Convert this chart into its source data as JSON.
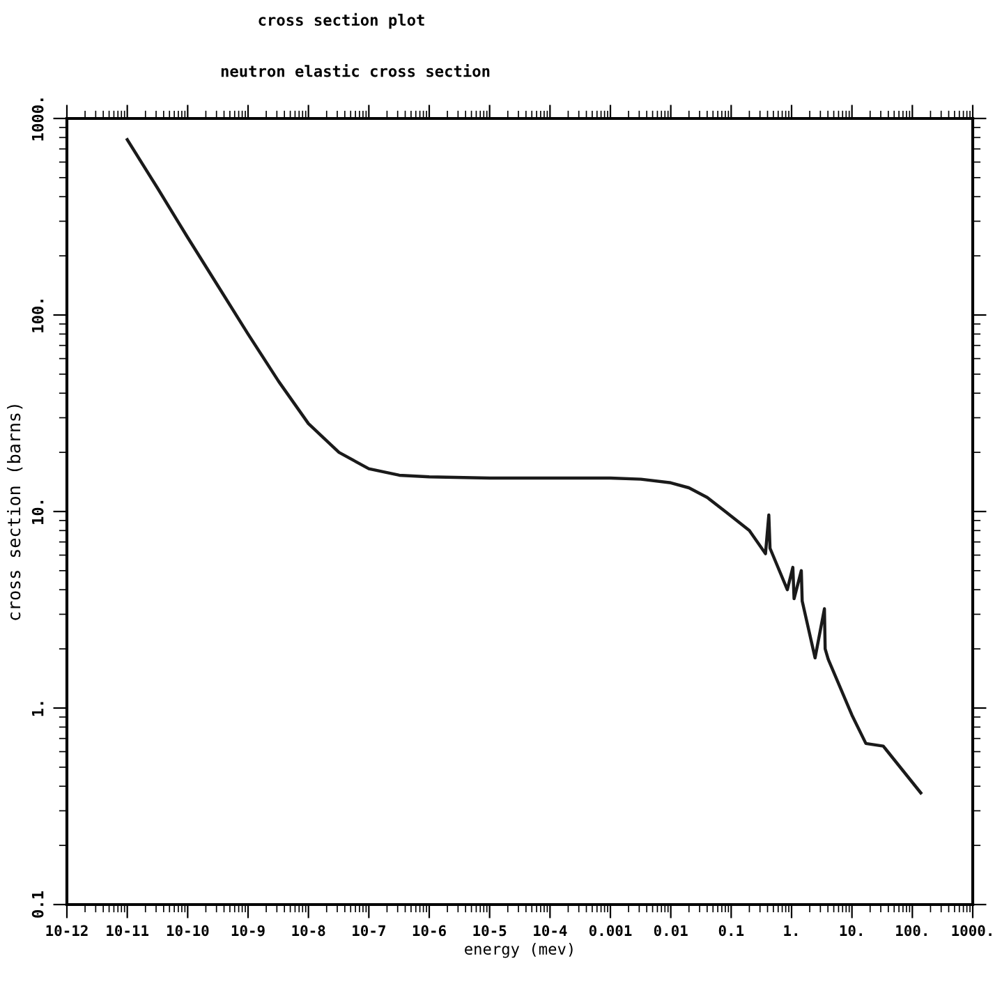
{
  "chart_data": {
    "type": "line",
    "title": "cross section plot",
    "subtitle": "neutron elastic cross section",
    "xlabel": "energy (mev)",
    "ylabel": "cross section (barns)",
    "log": "xy",
    "grid": false,
    "legend": false,
    "marker": "none",
    "line_style": "solid",
    "xlim": [
      1e-12,
      1000
    ],
    "ylim": [
      0.1,
      1000
    ],
    "xticks": [
      {
        "value": 1e-12,
        "label": "10-12"
      },
      {
        "value": 1e-11,
        "label": "10-11"
      },
      {
        "value": 1e-10,
        "label": "10-10"
      },
      {
        "value": 1e-09,
        "label": "10-9"
      },
      {
        "value": 1e-08,
        "label": "10-8"
      },
      {
        "value": 1e-07,
        "label": "10-7"
      },
      {
        "value": 1e-06,
        "label": "10-6"
      },
      {
        "value": 1e-05,
        "label": "10-5"
      },
      {
        "value": 0.0001,
        "label": "10-4"
      },
      0.001,
      0.01,
      0.1,
      {
        "value": 1,
        "label": "1."
      },
      {
        "value": 10,
        "label": "10."
      },
      {
        "value": 100,
        "label": "100."
      },
      {
        "value": 1000,
        "label": "1000."
      }
    ],
    "yticks": [
      0.1,
      {
        "value": 1,
        "label": "1."
      },
      {
        "value": 10,
        "label": "10."
      },
      {
        "value": 100,
        "label": "100."
      },
      {
        "value": 1000,
        "label": "1000."
      }
    ],
    "series": [
      {
        "color": "#1a1a1a",
        "x": [
          1e-11,
          3.2e-11,
          1e-10,
          3.2e-10,
          1e-09,
          3.2e-09,
          1e-08,
          3.2e-08,
          1e-07,
          3.2e-07,
          1e-06,
          1e-05,
          0.0001,
          0.001,
          0.0032,
          0.01,
          0.02,
          0.04,
          0.08,
          0.2,
          0.37,
          0.42,
          0.44,
          0.85,
          1.05,
          1.1,
          1.45,
          1.5,
          2.45,
          3.5,
          3.6,
          4.05,
          10,
          17,
          33,
          138
        ],
        "values": [
          780,
          440,
          248,
          140,
          80,
          46,
          28,
          20,
          16.5,
          15.3,
          15,
          14.8,
          14.8,
          14.8,
          14.6,
          14,
          13.2,
          11.8,
          10,
          8,
          6.1,
          9.6,
          6.5,
          4,
          5.2,
          3.6,
          5,
          3.5,
          1.8,
          3.2,
          2,
          1.77,
          0.92,
          0.66,
          0.64,
          0.37
        ]
      }
    ]
  }
}
